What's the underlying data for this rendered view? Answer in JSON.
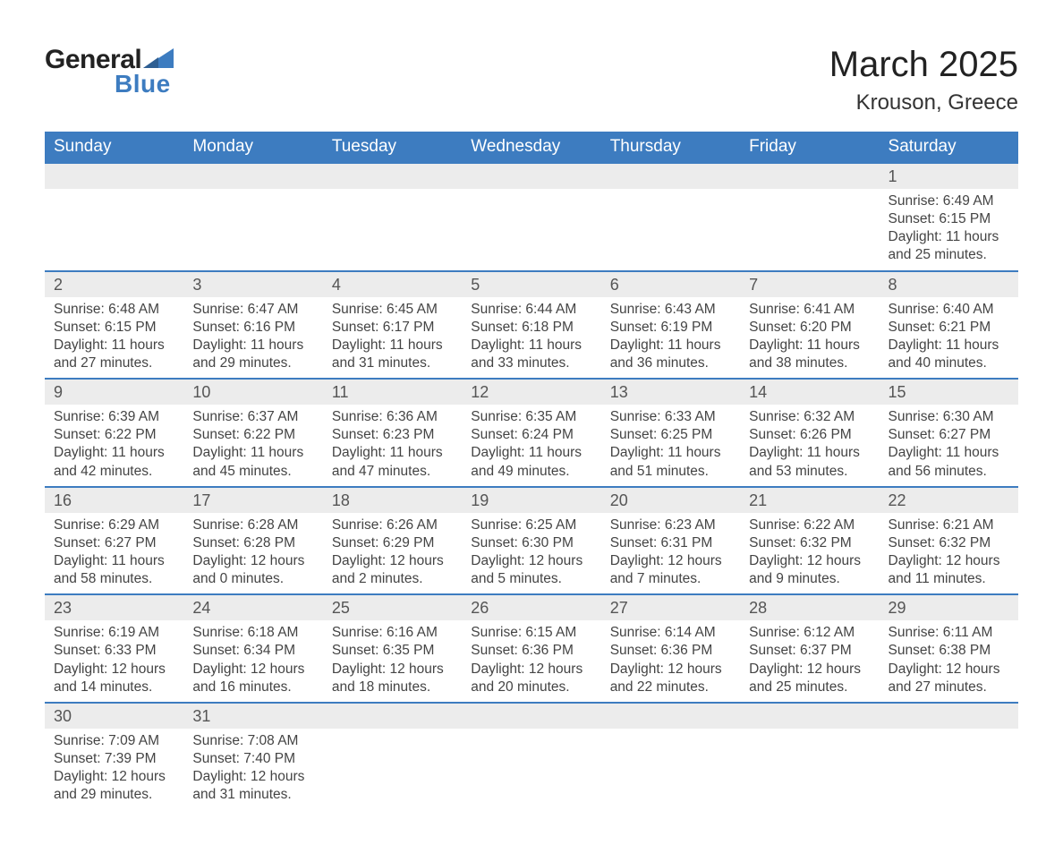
{
  "logo": {
    "text_general": "General",
    "text_blue": "Blue",
    "accent_color": "#3d7cc0"
  },
  "title": {
    "month": "March 2025",
    "location": "Krouson, Greece"
  },
  "colors": {
    "header_bg": "#3d7cc0",
    "header_text": "#ffffff",
    "daybar_bg": "#ececec",
    "daybar_border": "#3d7cc0",
    "body_text": "#444444",
    "page_bg": "#ffffff"
  },
  "typography": {
    "month_fontsize": 40,
    "location_fontsize": 24,
    "dayhead_fontsize": 19,
    "daynum_fontsize": 18,
    "cell_fontsize": 15.5
  },
  "day_headers": [
    "Sunday",
    "Monday",
    "Tuesday",
    "Wednesday",
    "Thursday",
    "Friday",
    "Saturday"
  ],
  "weeks": [
    [
      null,
      null,
      null,
      null,
      null,
      null,
      {
        "n": "1",
        "sunrise": "6:49 AM",
        "sunset": "6:15 PM",
        "dl_h": "11",
        "dl_m": "25"
      }
    ],
    [
      {
        "n": "2",
        "sunrise": "6:48 AM",
        "sunset": "6:15 PM",
        "dl_h": "11",
        "dl_m": "27"
      },
      {
        "n": "3",
        "sunrise": "6:47 AM",
        "sunset": "6:16 PM",
        "dl_h": "11",
        "dl_m": "29"
      },
      {
        "n": "4",
        "sunrise": "6:45 AM",
        "sunset": "6:17 PM",
        "dl_h": "11",
        "dl_m": "31"
      },
      {
        "n": "5",
        "sunrise": "6:44 AM",
        "sunset": "6:18 PM",
        "dl_h": "11",
        "dl_m": "33"
      },
      {
        "n": "6",
        "sunrise": "6:43 AM",
        "sunset": "6:19 PM",
        "dl_h": "11",
        "dl_m": "36"
      },
      {
        "n": "7",
        "sunrise": "6:41 AM",
        "sunset": "6:20 PM",
        "dl_h": "11",
        "dl_m": "38"
      },
      {
        "n": "8",
        "sunrise": "6:40 AM",
        "sunset": "6:21 PM",
        "dl_h": "11",
        "dl_m": "40"
      }
    ],
    [
      {
        "n": "9",
        "sunrise": "6:39 AM",
        "sunset": "6:22 PM",
        "dl_h": "11",
        "dl_m": "42"
      },
      {
        "n": "10",
        "sunrise": "6:37 AM",
        "sunset": "6:22 PM",
        "dl_h": "11",
        "dl_m": "45"
      },
      {
        "n": "11",
        "sunrise": "6:36 AM",
        "sunset": "6:23 PM",
        "dl_h": "11",
        "dl_m": "47"
      },
      {
        "n": "12",
        "sunrise": "6:35 AM",
        "sunset": "6:24 PM",
        "dl_h": "11",
        "dl_m": "49"
      },
      {
        "n": "13",
        "sunrise": "6:33 AM",
        "sunset": "6:25 PM",
        "dl_h": "11",
        "dl_m": "51"
      },
      {
        "n": "14",
        "sunrise": "6:32 AM",
        "sunset": "6:26 PM",
        "dl_h": "11",
        "dl_m": "53"
      },
      {
        "n": "15",
        "sunrise": "6:30 AM",
        "sunset": "6:27 PM",
        "dl_h": "11",
        "dl_m": "56"
      }
    ],
    [
      {
        "n": "16",
        "sunrise": "6:29 AM",
        "sunset": "6:27 PM",
        "dl_h": "11",
        "dl_m": "58"
      },
      {
        "n": "17",
        "sunrise": "6:28 AM",
        "sunset": "6:28 PM",
        "dl_h": "12",
        "dl_m": "0"
      },
      {
        "n": "18",
        "sunrise": "6:26 AM",
        "sunset": "6:29 PM",
        "dl_h": "12",
        "dl_m": "2"
      },
      {
        "n": "19",
        "sunrise": "6:25 AM",
        "sunset": "6:30 PM",
        "dl_h": "12",
        "dl_m": "5"
      },
      {
        "n": "20",
        "sunrise": "6:23 AM",
        "sunset": "6:31 PM",
        "dl_h": "12",
        "dl_m": "7"
      },
      {
        "n": "21",
        "sunrise": "6:22 AM",
        "sunset": "6:32 PM",
        "dl_h": "12",
        "dl_m": "9"
      },
      {
        "n": "22",
        "sunrise": "6:21 AM",
        "sunset": "6:32 PM",
        "dl_h": "12",
        "dl_m": "11"
      }
    ],
    [
      {
        "n": "23",
        "sunrise": "6:19 AM",
        "sunset": "6:33 PM",
        "dl_h": "12",
        "dl_m": "14"
      },
      {
        "n": "24",
        "sunrise": "6:18 AM",
        "sunset": "6:34 PM",
        "dl_h": "12",
        "dl_m": "16"
      },
      {
        "n": "25",
        "sunrise": "6:16 AM",
        "sunset": "6:35 PM",
        "dl_h": "12",
        "dl_m": "18"
      },
      {
        "n": "26",
        "sunrise": "6:15 AM",
        "sunset": "6:36 PM",
        "dl_h": "12",
        "dl_m": "20"
      },
      {
        "n": "27",
        "sunrise": "6:14 AM",
        "sunset": "6:36 PM",
        "dl_h": "12",
        "dl_m": "22"
      },
      {
        "n": "28",
        "sunrise": "6:12 AM",
        "sunset": "6:37 PM",
        "dl_h": "12",
        "dl_m": "25"
      },
      {
        "n": "29",
        "sunrise": "6:11 AM",
        "sunset": "6:38 PM",
        "dl_h": "12",
        "dl_m": "27"
      }
    ],
    [
      {
        "n": "30",
        "sunrise": "7:09 AM",
        "sunset": "7:39 PM",
        "dl_h": "12",
        "dl_m": "29"
      },
      {
        "n": "31",
        "sunrise": "7:08 AM",
        "sunset": "7:40 PM",
        "dl_h": "12",
        "dl_m": "31"
      },
      null,
      null,
      null,
      null,
      null
    ]
  ],
  "labels": {
    "sunrise": "Sunrise:",
    "sunset": "Sunset:",
    "daylight_prefix": "Daylight:",
    "hours_word": "hours",
    "and_word": "and",
    "minutes_word": "minutes."
  }
}
